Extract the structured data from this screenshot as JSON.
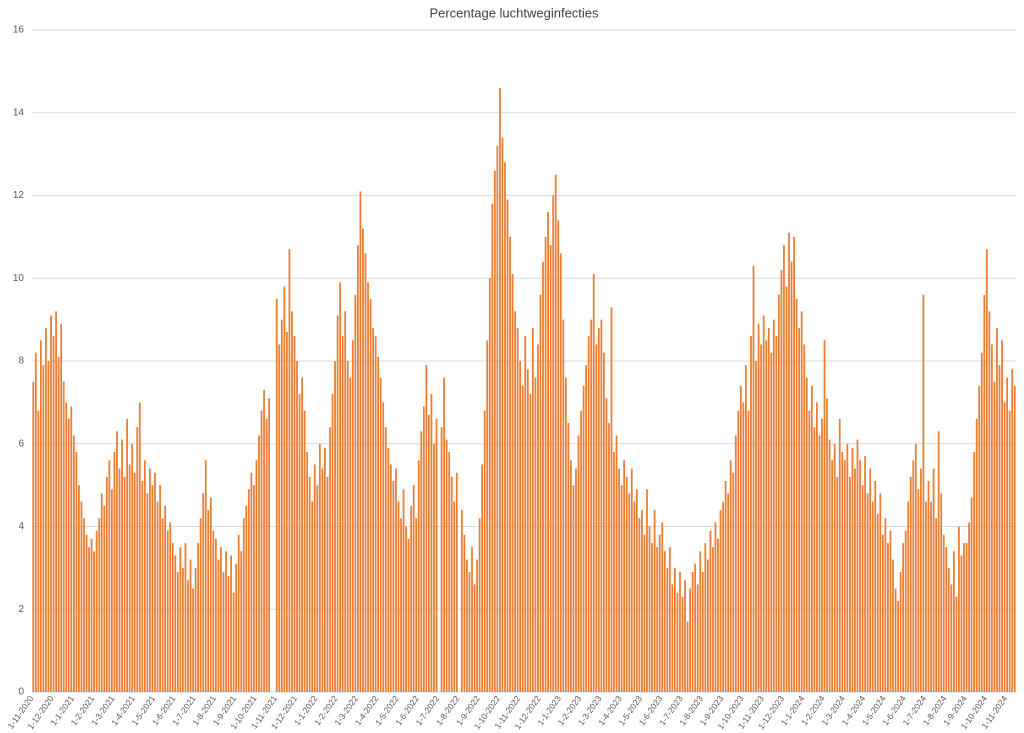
{
  "chart_data": {
    "type": "bar",
    "title": "Percentage luchtweginfecties",
    "color": "#ed7d31",
    "grid": true,
    "ylim": [
      0,
      16
    ],
    "yticks": [
      0,
      2,
      4,
      6,
      8,
      10,
      12,
      14,
      16
    ],
    "categories": [
      "1-11-2020",
      null,
      null,
      null,
      null,
      null,
      null,
      null,
      "1-12-2020",
      null,
      null,
      null,
      null,
      null,
      null,
      null,
      "1-1-2021",
      null,
      null,
      null,
      null,
      null,
      null,
      null,
      "1-2-2021",
      null,
      null,
      null,
      null,
      null,
      null,
      null,
      "1-3-2021",
      null,
      null,
      null,
      null,
      null,
      null,
      null,
      "1-4-2021",
      null,
      null,
      null,
      null,
      null,
      null,
      null,
      "1-5-2021",
      null,
      null,
      null,
      null,
      null,
      null,
      null,
      "1-6-2021",
      null,
      null,
      null,
      null,
      null,
      null,
      null,
      "1-7-2021",
      null,
      null,
      null,
      null,
      null,
      null,
      null,
      "1-8-2021",
      null,
      null,
      null,
      null,
      null,
      null,
      null,
      "1-9-2021",
      null,
      null,
      null,
      null,
      null,
      null,
      null,
      "1-10-2021",
      null,
      null,
      null,
      null,
      null,
      null,
      null,
      "1-11-2021",
      null,
      null,
      null,
      null,
      null,
      null,
      null,
      "1-12-2021",
      null,
      null,
      null,
      null,
      null,
      null,
      null,
      "1-1-2022",
      null,
      null,
      null,
      null,
      null,
      null,
      null,
      "1-2-2022",
      null,
      null,
      null,
      null,
      null,
      null,
      null,
      "1-3-2022",
      null,
      null,
      null,
      null,
      null,
      null,
      null,
      "1-4-2022",
      null,
      null,
      null,
      null,
      null,
      null,
      null,
      "1-5-2022",
      null,
      null,
      null,
      null,
      null,
      null,
      null,
      "1-6-2022",
      null,
      null,
      null,
      null,
      null,
      null,
      null,
      "1-7-2022",
      null,
      null,
      null,
      null,
      null,
      null,
      null,
      "1-8-2022",
      null,
      null,
      null,
      null,
      null,
      null,
      null,
      "1-9-2022",
      null,
      null,
      null,
      null,
      null,
      null,
      null,
      "1-10-2022",
      null,
      null,
      null,
      null,
      null,
      null,
      null,
      "1-11-2022",
      null,
      null,
      null,
      null,
      null,
      null,
      null,
      "1-12-2022",
      null,
      null,
      null,
      null,
      null,
      null,
      null,
      "1-1-2023",
      null,
      null,
      null,
      null,
      null,
      null,
      null,
      "1-2-2023",
      null,
      null,
      null,
      null,
      null,
      null,
      null,
      "1-3-2023",
      null,
      null,
      null,
      null,
      null,
      null,
      null,
      "1-4-2023",
      null,
      null,
      null,
      null,
      null,
      null,
      null,
      "1-5-2023",
      null,
      null,
      null,
      null,
      null,
      null,
      null,
      "1-6-2023",
      null,
      null,
      null,
      null,
      null,
      null,
      null,
      "1-7-2023",
      null,
      null,
      null,
      null,
      null,
      null,
      null,
      "1-8-2023",
      null,
      null,
      null,
      null,
      null,
      null,
      null,
      "1-9-2023",
      null,
      null,
      null,
      null,
      null,
      null,
      null,
      "1-10-2023",
      null,
      null,
      null,
      null,
      null,
      null,
      null,
      "1-11-2023",
      null,
      null,
      null,
      null,
      null,
      null,
      null,
      "1-12-2023",
      null,
      null,
      null,
      null,
      null,
      null,
      null,
      "1-1-2024",
      null,
      null,
      null,
      null,
      null,
      null,
      null,
      "1-2-2024",
      null,
      null,
      null,
      null,
      null,
      null,
      null,
      "1-3-2024",
      null,
      null,
      null,
      null,
      null,
      null,
      null,
      "1-4-2024",
      null,
      null,
      null,
      null,
      null,
      null,
      null,
      "1-5-2024",
      null,
      null,
      null,
      null,
      null,
      null,
      null,
      "1-6-2024",
      null,
      null,
      null,
      null,
      null,
      null,
      null,
      "1-7-2024",
      null,
      null,
      null,
      null,
      null,
      null,
      null,
      "1-8-2024",
      null,
      null,
      null,
      null,
      null,
      null,
      null,
      "1-9-2024",
      null,
      null,
      null,
      null,
      null,
      null,
      null,
      "1-10-2024",
      null,
      null,
      null,
      null,
      null,
      null,
      null,
      "1-11-2024",
      null,
      null,
      null
    ],
    "values": [
      7.5,
      8.2,
      6.8,
      8.5,
      7.9,
      8.8,
      8.0,
      9.1,
      8.6,
      9.2,
      8.1,
      8.9,
      7.5,
      7.0,
      6.6,
      6.9,
      6.2,
      5.8,
      5.0,
      4.6,
      4.2,
      3.8,
      3.5,
      3.7,
      3.4,
      3.9,
      4.2,
      4.8,
      4.5,
      5.2,
      5.6,
      4.9,
      5.8,
      6.3,
      5.4,
      6.1,
      5.2,
      6.6,
      5.5,
      6.0,
      5.3,
      6.4,
      7.0,
      5.1,
      5.6,
      4.8,
      5.4,
      5.0,
      5.3,
      4.6,
      5.0,
      4.2,
      4.5,
      3.9,
      4.1,
      3.6,
      3.3,
      2.9,
      3.5,
      3.0,
      3.6,
      2.7,
      3.2,
      2.5,
      3.0,
      3.6,
      4.2,
      4.8,
      5.6,
      4.4,
      4.7,
      3.9,
      3.7,
      3.2,
      3.5,
      2.9,
      3.4,
      2.8,
      3.3,
      2.4,
      3.1,
      3.8,
      3.4,
      4.2,
      4.5,
      4.9,
      5.3,
      5.0,
      5.6,
      6.2,
      6.8,
      7.3,
      6.6,
      7.1,
      null,
      null,
      9.5,
      8.4,
      9.0,
      9.8,
      8.7,
      10.7,
      9.2,
      8.6,
      8.0,
      7.2,
      7.6,
      6.8,
      5.8,
      5.2,
      4.6,
      5.5,
      5.0,
      6.0,
      5.4,
      5.9,
      5.2,
      6.4,
      7.2,
      8.0,
      9.1,
      9.9,
      8.6,
      9.2,
      8.0,
      7.6,
      8.5,
      9.6,
      10.8,
      12.1,
      11.2,
      10.6,
      9.9,
      9.5,
      8.8,
      8.6,
      8.1,
      7.6,
      7.0,
      6.4,
      5.9,
      5.5,
      5.1,
      5.4,
      4.6,
      4.2,
      4.9,
      4.0,
      3.7,
      4.5,
      5.0,
      4.2,
      5.6,
      6.3,
      6.9,
      7.9,
      6.7,
      7.2,
      6.0,
      6.6,
      null,
      6.4,
      7.6,
      6.1,
      5.8,
      5.2,
      4.6,
      5.3,
      null,
      4.4,
      3.8,
      3.2,
      2.9,
      3.5,
      2.6,
      3.2,
      4.2,
      5.5,
      6.8,
      8.5,
      10.0,
      11.8,
      12.6,
      13.2,
      14.6,
      13.4,
      12.8,
      11.9,
      11.0,
      10.1,
      9.2,
      8.8,
      8.0,
      7.4,
      8.6,
      7.8,
      7.2,
      8.8,
      7.6,
      8.4,
      9.6,
      10.4,
      11.0,
      11.6,
      10.8,
      12.0,
      12.5,
      11.4,
      10.6,
      9.0,
      7.6,
      6.5,
      5.6,
      5.0,
      5.4,
      6.2,
      6.8,
      7.4,
      7.9,
      8.6,
      9.0,
      10.1,
      8.4,
      8.8,
      9.0,
      8.2,
      7.1,
      6.5,
      9.3,
      5.8,
      6.2,
      5.4,
      5.0,
      5.6,
      5.2,
      4.8,
      5.4,
      4.6,
      4.9,
      4.2,
      4.4,
      3.8,
      4.9,
      4.0,
      3.6,
      4.4,
      3.5,
      3.8,
      4.1,
      3.4,
      3.0,
      3.5,
      2.6,
      3.0,
      2.4,
      2.9,
      2.3,
      2.7,
      1.7,
      2.5,
      2.9,
      3.1,
      2.6,
      3.4,
      2.9,
      3.6,
      3.2,
      3.9,
      3.5,
      4.1,
      3.7,
      4.4,
      4.6,
      5.1,
      4.8,
      5.6,
      5.3,
      6.2,
      6.8,
      7.4,
      7.0,
      7.9,
      6.8,
      8.6,
      10.3,
      8.0,
      8.9,
      8.4,
      9.1,
      8.5,
      8.8,
      8.2,
      9.0,
      8.6,
      9.6,
      10.2,
      10.8,
      9.8,
      11.1,
      10.4,
      11.0,
      9.5,
      8.8,
      9.2,
      8.4,
      7.6,
      6.8,
      7.4,
      6.4,
      7.0,
      6.2,
      6.6,
      8.5,
      7.1,
      6.1,
      5.6,
      6.0,
      5.2,
      6.6,
      5.8,
      5.6,
      6.0,
      5.2,
      5.9,
      5.4,
      6.1,
      5.6,
      5.0,
      5.7,
      4.8,
      5.4,
      4.6,
      5.1,
      4.3,
      4.8,
      3.8,
      4.2,
      3.6,
      3.9,
      3.2,
      2.5,
      2.2,
      2.9,
      3.6,
      3.9,
      4.6,
      5.2,
      5.6,
      6.0,
      4.9,
      5.4,
      9.6,
      4.6,
      5.1,
      4.6,
      5.4,
      4.2,
      6.3,
      4.8,
      3.8,
      3.5,
      3.0,
      2.6,
      3.4,
      2.3,
      4.0,
      3.3,
      3.6,
      3.6,
      4.1,
      4.7,
      5.8,
      6.6,
      7.4,
      8.2,
      9.6,
      10.7,
      9.2,
      8.4,
      7.5,
      8.8,
      7.9,
      8.5,
      7.0,
      7.6,
      6.8,
      7.8,
      7.4
    ]
  }
}
